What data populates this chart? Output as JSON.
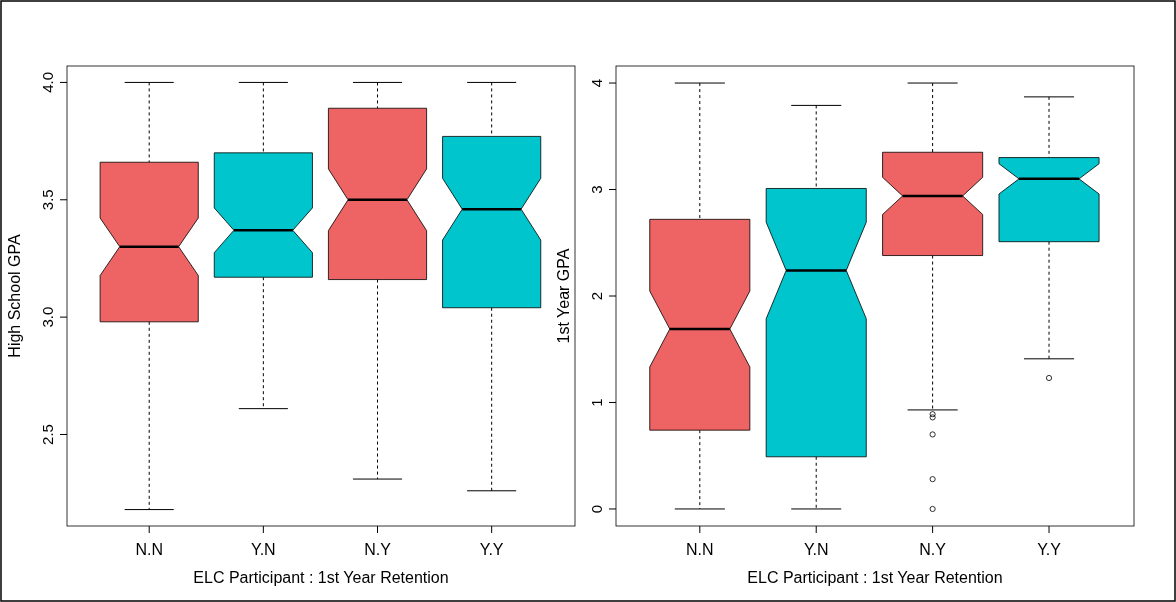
{
  "chart_data": [
    {
      "type": "box",
      "xlabel": "ELC Participant : 1st Year Retention",
      "ylabel": "High School GPA",
      "categories": [
        "N.N",
        "Y.N",
        "N.Y",
        "Y.Y"
      ],
      "colors": [
        "#ee6363",
        "#00c5cd",
        "#ee6363",
        "#00c5cd"
      ],
      "ylim": [
        2.11,
        4.07
      ],
      "yticks": [
        {
          "value": 2.5,
          "label": "2.5"
        },
        {
          "value": 3,
          "label": "3.0"
        },
        {
          "value": 3.5,
          "label": "3.5"
        },
        {
          "value": 4,
          "label": "4.0"
        }
      ],
      "boxes": [
        {
          "low": 2.18,
          "q1": 2.98,
          "median": 3.3,
          "q3": 3.66,
          "high": 4.0
        },
        {
          "low": 2.61,
          "q1": 3.17,
          "median": 3.37,
          "q3": 3.7,
          "high": 4.0
        },
        {
          "low": 2.31,
          "q1": 3.16,
          "median": 3.5,
          "q3": 3.89,
          "high": 4.0
        },
        {
          "low": 2.26,
          "q1": 3.04,
          "median": 3.46,
          "q3": 3.77,
          "high": 4.0
        }
      ]
    },
    {
      "type": "box",
      "xlabel": "ELC Participant : 1st Year Retention",
      "ylabel": "1st Year GPA",
      "categories": [
        "N.N",
        "Y.N",
        "N.Y",
        "Y.Y"
      ],
      "colors": [
        "#ee6363",
        "#00c5cd",
        "#ee6363",
        "#00c5cd"
      ],
      "ylim": [
        -0.16,
        4.16
      ],
      "yticks": [
        0,
        1,
        2,
        3,
        4
      ],
      "boxes": [
        {
          "low": 0,
          "q1": 0.74,
          "median": 1.69,
          "q3": 2.72,
          "high": 4.0
        },
        {
          "low": 0,
          "q1": 0.49,
          "median": 2.24,
          "q3": 3.01,
          "high": 3.79
        },
        {
          "low": 0.93,
          "q1": 2.38,
          "median": 2.94,
          "q3": 3.35,
          "high": 4.0,
          "outliers": [
            0.89,
            0.86,
            0.7,
            0.28,
            0
          ]
        },
        {
          "low": 1.41,
          "q1": 2.51,
          "median": 3.1,
          "q3": 3.3,
          "high": 3.87,
          "outliers": [
            1.23
          ]
        }
      ]
    }
  ]
}
